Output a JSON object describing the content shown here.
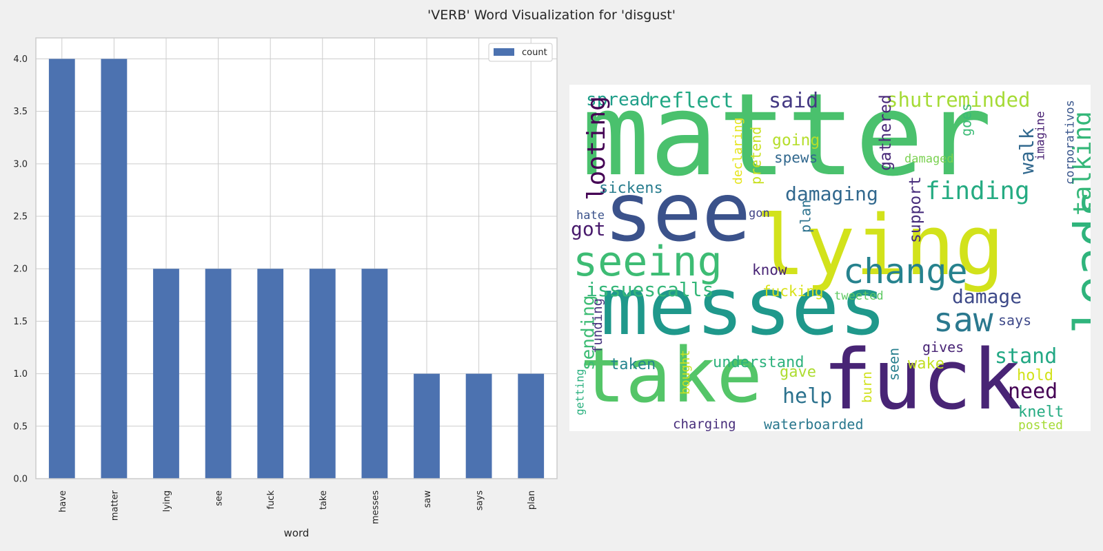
{
  "figure": {
    "title": "'VERB' Word Visualization for 'disgust'"
  },
  "chart_data": [
    {
      "type": "bar",
      "categories": [
        "have",
        "matter",
        "lying",
        "see",
        "fuck",
        "take",
        "messes",
        "saw",
        "says",
        "plan"
      ],
      "series": [
        {
          "name": "count",
          "values": [
            4,
            4,
            2,
            2,
            2,
            2,
            2,
            1,
            1,
            1
          ],
          "color": "#4c72b0"
        }
      ],
      "title": "",
      "xlabel": "word",
      "ylabel": "",
      "ylim": [
        0,
        4.2
      ],
      "yticks": [
        "0.0",
        "0.5",
        "1.0",
        "1.5",
        "2.0",
        "2.5",
        "3.0",
        "3.5",
        "4.0"
      ],
      "grid": true,
      "legend_position": "top-right",
      "colors": {
        "plot_background": "#ffffff",
        "grid": "#cccccc",
        "axes_edge": "#cccccc",
        "bar": "#4c72b0"
      }
    },
    {
      "type": "wordcloud",
      "background": "#ffffff",
      "words": [
        {
          "text": "matter",
          "color": "#4ac16d"
        },
        {
          "text": "see",
          "color": "#3b528b"
        },
        {
          "text": "lying",
          "color": "#d2e21b"
        },
        {
          "text": "messes",
          "color": "#1f988b"
        },
        {
          "text": "take",
          "color": "#54c568"
        },
        {
          "text": "fuck",
          "color": "#482475"
        },
        {
          "text": "leads",
          "color": "#2fb47c"
        },
        {
          "text": "seeing",
          "color": "#3dbc74"
        },
        {
          "text": "change",
          "color": "#26828e"
        },
        {
          "text": "saw",
          "color": "#2a788e"
        },
        {
          "text": "finding",
          "color": "#25ab82"
        },
        {
          "text": "talking",
          "color": "#35b779"
        },
        {
          "text": "shutreminded",
          "color": "#a5db36"
        },
        {
          "text": "reflect",
          "color": "#22a884"
        },
        {
          "text": "spread",
          "color": "#1f9e89"
        },
        {
          "text": "said",
          "color": "#443983"
        },
        {
          "text": "looting",
          "color": "#440154"
        },
        {
          "text": "damaging",
          "color": "#31688e"
        },
        {
          "text": "issuescalls",
          "color": "#35b779"
        },
        {
          "text": "damage",
          "color": "#3e4a89"
        },
        {
          "text": "help",
          "color": "#2c728e"
        },
        {
          "text": "stand",
          "color": "#22a884"
        },
        {
          "text": "need",
          "color": "#440154"
        },
        {
          "text": "walk",
          "color": "#31688e"
        },
        {
          "text": "got",
          "color": "#481a6c"
        },
        {
          "text": "going",
          "color": "#b5de2b"
        },
        {
          "text": "spews",
          "color": "#31688e"
        },
        {
          "text": "gathered",
          "color": "#482878"
        },
        {
          "text": "sickens",
          "color": "#287d8e"
        },
        {
          "text": "support",
          "color": "#472d7b"
        },
        {
          "text": "sending",
          "color": "#3dbc74"
        },
        {
          "text": "taken",
          "color": "#25858e"
        },
        {
          "text": "understand",
          "color": "#2db27d"
        },
        {
          "text": "wake",
          "color": "#c2df23"
        },
        {
          "text": "gave",
          "color": "#addc30"
        },
        {
          "text": "hold",
          "color": "#d2e21b"
        },
        {
          "text": "knelt",
          "color": "#25ab82"
        },
        {
          "text": "fucking",
          "color": "#d8e219"
        },
        {
          "text": "know",
          "color": "#482475"
        },
        {
          "text": "says",
          "color": "#3e4989"
        },
        {
          "text": "gives",
          "color": "#482475"
        },
        {
          "text": "waterboarded",
          "color": "#2a788e"
        },
        {
          "text": "charging",
          "color": "#472d7b"
        },
        {
          "text": "pretend",
          "color": "#c8e020"
        },
        {
          "text": "declaring",
          "color": "#e5e419"
        },
        {
          "text": "plan",
          "color": "#2c728e"
        },
        {
          "text": "goes",
          "color": "#3bbb75"
        },
        {
          "text": "imagine",
          "color": "#482173"
        },
        {
          "text": "corporativos",
          "color": "#39568c"
        },
        {
          "text": "damaged",
          "color": "#7ad151"
        },
        {
          "text": "tweeted",
          "color": "#5ec962"
        },
        {
          "text": "seen",
          "color": "#277f8e"
        },
        {
          "text": "burn",
          "color": "#d0e11c"
        },
        {
          "text": "bought",
          "color": "#cae11f"
        },
        {
          "text": "funding",
          "color": "#46337e"
        },
        {
          "text": "getting",
          "color": "#2ab07f"
        },
        {
          "text": "hate",
          "color": "#3b528b"
        },
        {
          "text": "gon",
          "color": "#414487"
        },
        {
          "text": "posted",
          "color": "#a5db36"
        }
      ]
    }
  ]
}
